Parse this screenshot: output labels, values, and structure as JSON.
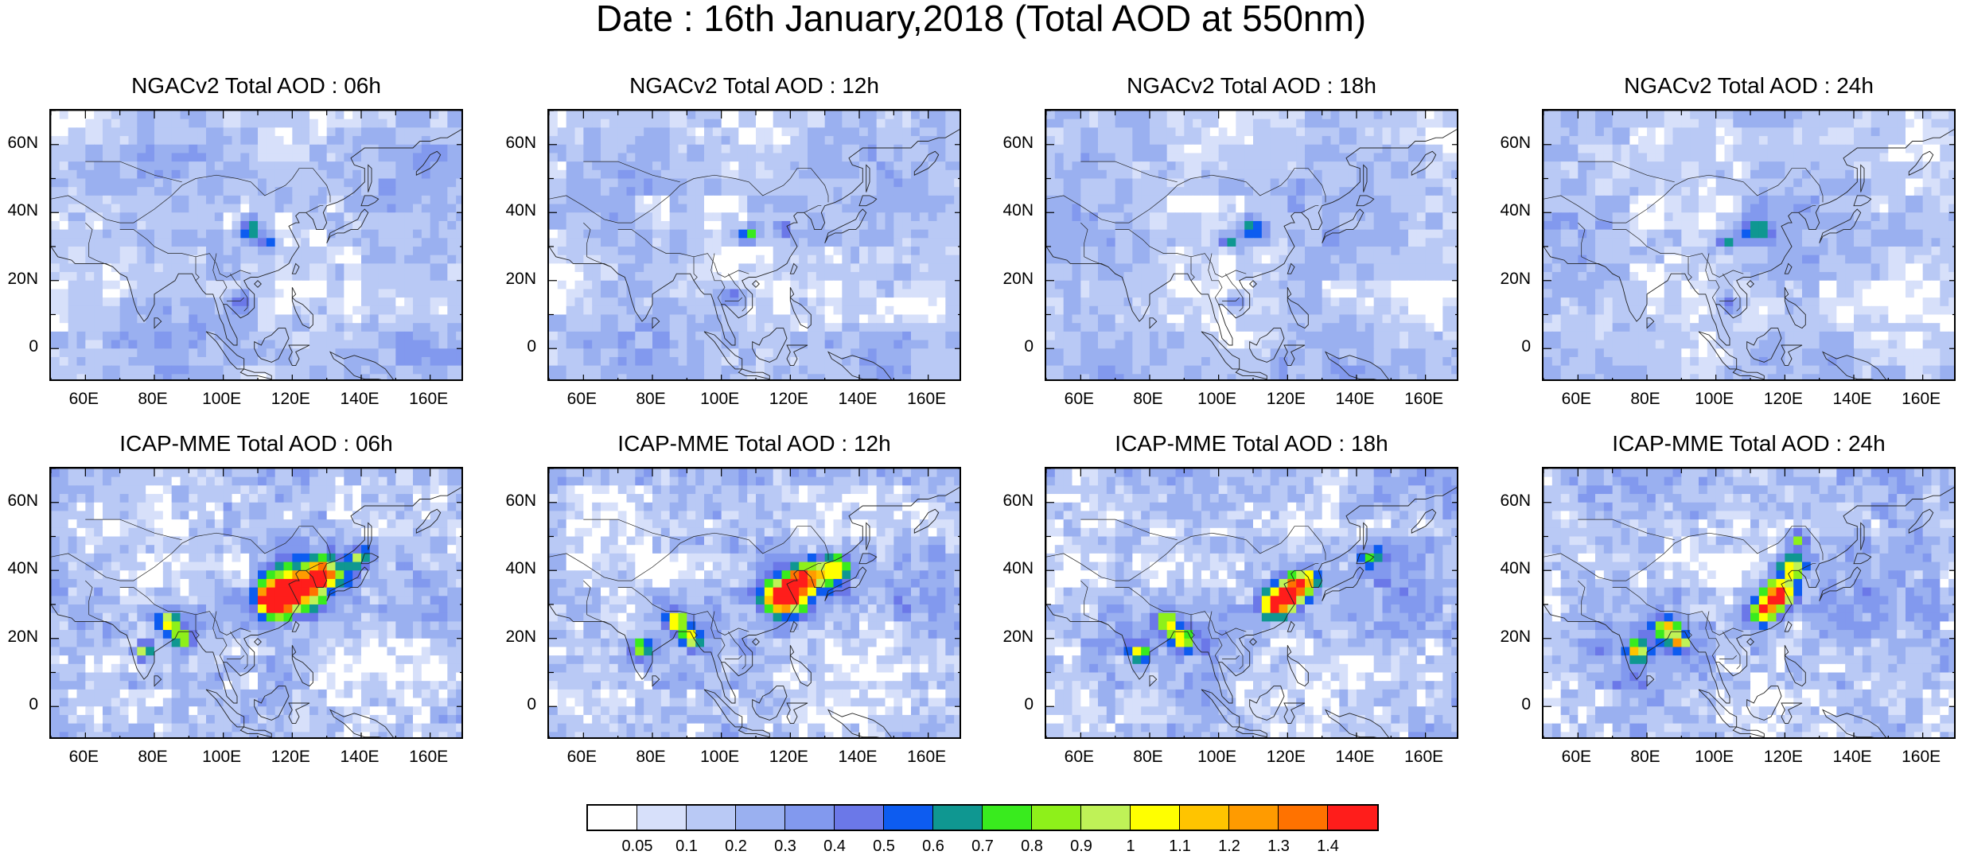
{
  "title": "Date : 16th January,2018 (Total AOD at 550nm)",
  "panels": [
    {
      "title": "NGACv2 Total AOD : 06h",
      "model": "ngac",
      "hotspots": [
        [
          108,
          35,
          2.2,
          0.55
        ],
        [
          113,
          31,
          1.6,
          0.5
        ],
        [
          105,
          14,
          2.2,
          0.4
        ]
      ]
    },
    {
      "title": "NGACv2 Total AOD : 12h",
      "model": "ngac",
      "hotspots": [
        [
          108,
          34,
          2.0,
          0.55
        ],
        [
          118,
          35,
          1.6,
          0.5
        ],
        [
          103,
          15,
          2.5,
          0.4
        ]
      ]
    },
    {
      "title": "NGACv2 Total AOD : 18h",
      "model": "ngac",
      "hotspots": [
        [
          110,
          35,
          2.3,
          0.55
        ],
        [
          103,
          31,
          1.4,
          0.5
        ],
        [
          105,
          14,
          2.0,
          0.35
        ]
      ]
    },
    {
      "title": "NGACv2 Total AOD : 24h",
      "model": "ngac",
      "hotspots": [
        [
          112,
          35,
          2.6,
          0.6
        ],
        [
          103,
          31,
          1.6,
          0.55
        ],
        [
          104,
          13,
          2.0,
          0.4
        ]
      ]
    },
    {
      "title": "ICAP-MME Total AOD : 06h",
      "model": "icap",
      "hotspots": [
        [
          120,
          34,
          4.5,
          1.4
        ],
        [
          114,
          31,
          3.0,
          1.2
        ],
        [
          129,
          39,
          3.5,
          1.1
        ],
        [
          84,
          25,
          2.2,
          0.9
        ],
        [
          88,
          20,
          2.0,
          0.9
        ],
        [
          77,
          16,
          1.8,
          0.75
        ],
        [
          140,
          44,
          2.5,
          0.6
        ]
      ]
    },
    {
      "title": "ICAP-MME Total AOD : 12h",
      "model": "icap",
      "hotspots": [
        [
          118,
          32,
          3.5,
          1.45
        ],
        [
          124,
          37,
          3.5,
          1.2
        ],
        [
          133,
          40,
          3.0,
          0.9
        ],
        [
          87,
          25,
          2.2,
          0.9
        ],
        [
          91,
          20,
          1.8,
          0.85
        ],
        [
          77,
          17,
          2.0,
          0.75
        ]
      ]
    },
    {
      "title": "ICAP-MME Total AOD : 18h",
      "model": "icap",
      "hotspots": [
        [
          120,
          33,
          3.0,
          1.45
        ],
        [
          116,
          29,
          2.5,
          1.0
        ],
        [
          125,
          37,
          2.5,
          0.95
        ],
        [
          85,
          25,
          2.0,
          0.9
        ],
        [
          89,
          20,
          2.0,
          0.85
        ],
        [
          77,
          16,
          1.8,
          0.8
        ],
        [
          145,
          44,
          2.5,
          0.55
        ]
      ]
    },
    {
      "title": "ICAP-MME Total AOD : 24h",
      "model": "icap",
      "hotspots": [
        [
          118,
          33,
          3.0,
          1.4
        ],
        [
          114,
          28,
          2.5,
          1.0
        ],
        [
          122,
          41,
          2.5,
          0.95
        ],
        [
          124,
          49,
          1.8,
          0.75
        ],
        [
          86,
          23,
          2.2,
          0.9
        ],
        [
          90,
          19,
          1.8,
          0.85
        ],
        [
          77,
          16,
          2.0,
          0.8
        ]
      ]
    }
  ],
  "map_extent": {
    "lon_min": 50,
    "lon_max": 170,
    "lat_min": -10,
    "lat_max": 70
  },
  "lat_ticks": [
    {
      "value": 60,
      "label": "60N"
    },
    {
      "value": 40,
      "label": "40N"
    },
    {
      "value": 20,
      "label": "20N"
    },
    {
      "value": 0,
      "label": "0"
    }
  ],
  "lon_ticks": [
    {
      "value": 60,
      "label": "60E"
    },
    {
      "value": 80,
      "label": "80E"
    },
    {
      "value": 100,
      "label": "100E"
    },
    {
      "value": 120,
      "label": "120E"
    },
    {
      "value": 140,
      "label": "140E"
    },
    {
      "value": 160,
      "label": "160E"
    }
  ],
  "colorbar": {
    "levels": [
      "0.05",
      "0.1",
      "0.2",
      "0.3",
      "0.4",
      "0.5",
      "0.6",
      "0.7",
      "0.8",
      "0.9",
      "1",
      "1.1",
      "1.2",
      "1.3",
      "1.4"
    ],
    "level_values": [
      0.05,
      0.1,
      0.2,
      0.3,
      0.4,
      0.5,
      0.6,
      0.7,
      0.8,
      0.9,
      1.0,
      1.1,
      1.2,
      1.3,
      1.4
    ],
    "colors": [
      "#ffffff",
      "#d7e0fa",
      "#b9c9f5",
      "#9ab0f0",
      "#8299ee",
      "#6b78e8",
      "#0d5cf0",
      "#0f9791",
      "#39eb1e",
      "#8ef01a",
      "#bff257",
      "#ffff00",
      "#ffc400",
      "#ff9b00",
      "#ff7200",
      "#ff1d1b"
    ]
  }
}
